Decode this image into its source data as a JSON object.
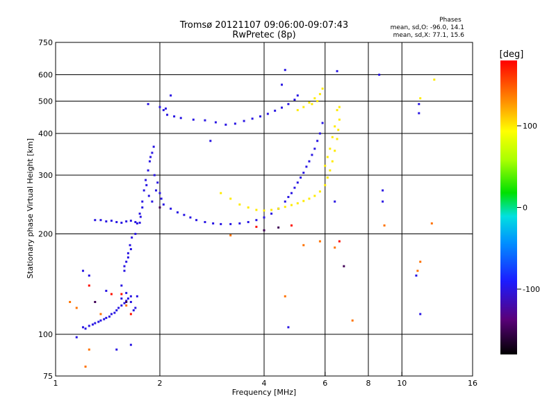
{
  "header": {
    "title_line1": "Tromsø 20121107 09:06:00-09:07:43",
    "title_line2": "RwPretec (8p)"
  },
  "stats": {
    "heading": "Phases",
    "line1": "mean, sd,O: -96.0, 14.1",
    "line2": "mean, sd,X:  77.1, 15.6"
  },
  "colorbar": {
    "label": "[deg]",
    "ticks": [
      {
        "value": 100,
        "label": "100"
      },
      {
        "value": 0,
        "label": "0"
      },
      {
        "value": -100,
        "label": "-100"
      }
    ],
    "range": [
      -180,
      180
    ]
  },
  "chart_data": {
    "type": "scatter",
    "title": "Tromsø 20121107 09:06:00-09:07:43",
    "subtitle": "RwPretec (8p)",
    "xlabel": "Frequency [MHz]",
    "ylabel": "Stationary phase Virtual Height [km]",
    "x_scale": "log",
    "y_scale": "log",
    "xlim": [
      1,
      16
    ],
    "ylim": [
      75,
      750
    ],
    "x_ticks": [
      {
        "value": 1,
        "label": "1"
      },
      {
        "value": 2,
        "label": "2"
      },
      {
        "value": 4,
        "label": "4"
      },
      {
        "value": 6,
        "label": "6"
      },
      {
        "value": 8,
        "label": "8"
      },
      {
        "value": 10,
        "label": "10"
      },
      {
        "value": 16,
        "label": "16"
      }
    ],
    "x_grid": [
      2,
      4,
      6,
      8,
      10
    ],
    "y_ticks": [
      {
        "value": 75,
        "label": "75"
      },
      {
        "value": 100,
        "label": "100"
      },
      {
        "value": 200,
        "label": "200"
      },
      {
        "value": 300,
        "label": "300"
      },
      {
        "value": 400,
        "label": "400"
      },
      {
        "value": 500,
        "label": "500"
      },
      {
        "value": 600,
        "label": "600"
      },
      {
        "value": 750,
        "label": "750"
      }
    ],
    "y_grid": [
      100,
      200,
      300,
      400,
      500,
      600
    ],
    "grid": true,
    "color_by": "phase (deg)",
    "series": [
      {
        "points": [
          [
            1.2,
            105
          ],
          [
            1.25,
            106
          ],
          [
            1.3,
            108
          ],
          [
            1.35,
            110
          ],
          [
            1.4,
            112
          ],
          [
            1.45,
            115
          ],
          [
            1.5,
            118
          ],
          [
            1.55,
            122
          ],
          [
            1.6,
            126
          ],
          [
            1.65,
            130
          ],
          [
            1.22,
            104
          ],
          [
            1.28,
            107
          ],
          [
            1.33,
            109
          ],
          [
            1.38,
            111
          ],
          [
            1.43,
            113
          ],
          [
            1.48,
            116
          ],
          [
            1.52,
            120
          ],
          [
            1.58,
            124
          ],
          [
            1.62,
            128
          ],
          [
            1.68,
            118
          ],
          [
            1.55,
            140
          ],
          [
            1.58,
            155
          ],
          [
            1.6,
            165
          ],
          [
            1.62,
            175
          ],
          [
            1.64,
            185
          ],
          [
            1.66,
            195
          ],
          [
            1.58,
            160
          ],
          [
            1.62,
            170
          ],
          [
            1.65,
            180
          ],
          [
            1.7,
            200
          ],
          [
            1.72,
            215
          ],
          [
            1.75,
            230
          ],
          [
            1.78,
            250
          ],
          [
            1.8,
            270
          ],
          [
            1.82,
            290
          ],
          [
            1.85,
            310
          ],
          [
            1.87,
            330
          ],
          [
            1.9,
            350
          ],
          [
            1.92,
            365
          ],
          [
            1.88,
            340
          ],
          [
            1.83,
            280
          ],
          [
            1.86,
            260
          ],
          [
            1.9,
            250
          ],
          [
            1.95,
            270
          ],
          [
            2.0,
            265
          ],
          [
            1.93,
            300
          ],
          [
            1.97,
            285
          ],
          [
            2.02,
            255
          ],
          [
            1.78,
            240
          ],
          [
            1.76,
            225
          ],
          [
            1.3,
            220
          ],
          [
            1.35,
            220
          ],
          [
            1.4,
            218
          ],
          [
            1.45,
            219
          ],
          [
            1.5,
            217
          ],
          [
            1.55,
            216
          ],
          [
            1.6,
            218
          ],
          [
            1.65,
            219
          ],
          [
            1.7,
            217
          ],
          [
            1.75,
            216
          ],
          [
            1.2,
            155
          ],
          [
            1.25,
            150
          ],
          [
            1.4,
            135
          ],
          [
            1.55,
            128
          ],
          [
            1.6,
            133
          ],
          [
            1.65,
            125
          ],
          [
            1.7,
            120
          ],
          [
            1.72,
            130
          ],
          [
            1.15,
            98
          ],
          [
            1.5,
            90
          ],
          [
            2.05,
            245
          ],
          [
            2.15,
            238
          ],
          [
            2.25,
            232
          ],
          [
            2.35,
            228
          ],
          [
            2.45,
            224
          ],
          [
            2.55,
            220
          ],
          [
            2.7,
            217
          ],
          [
            2.85,
            215
          ],
          [
            3.0,
            214
          ],
          [
            3.2,
            214
          ],
          [
            3.4,
            215
          ],
          [
            3.6,
            217
          ],
          [
            3.8,
            220
          ],
          [
            4.0,
            224
          ],
          [
            4.2,
            230
          ],
          [
            4.4,
            238
          ],
          [
            4.6,
            250
          ],
          [
            4.8,
            265
          ],
          [
            5.0,
            285
          ],
          [
            5.2,
            305
          ],
          [
            5.4,
            330
          ],
          [
            5.6,
            360
          ],
          [
            5.8,
            400
          ],
          [
            5.9,
            430
          ],
          [
            5.7,
            380
          ],
          [
            5.5,
            345
          ],
          [
            5.3,
            318
          ],
          [
            5.1,
            295
          ],
          [
            4.9,
            275
          ],
          [
            4.7,
            258
          ],
          [
            2.1,
            455
          ],
          [
            2.2,
            450
          ],
          [
            2.3,
            445
          ],
          [
            2.5,
            440
          ],
          [
            2.7,
            438
          ],
          [
            2.9,
            432
          ],
          [
            3.1,
            425
          ],
          [
            3.3,
            428
          ],
          [
            3.5,
            436
          ],
          [
            3.7,
            443
          ],
          [
            3.9,
            450
          ],
          [
            4.1,
            458
          ],
          [
            4.3,
            468
          ],
          [
            4.5,
            478
          ],
          [
            4.7,
            490
          ],
          [
            4.9,
            505
          ],
          [
            5.0,
            520
          ],
          [
            2.08,
            475
          ],
          [
            2.15,
            520
          ],
          [
            2.05,
            470
          ],
          [
            4.6,
            620
          ],
          [
            4.5,
            560
          ],
          [
            8.6,
            600
          ],
          [
            6.5,
            615
          ],
          [
            2.8,
            380
          ],
          [
            4.7,
            105
          ],
          [
            1.65,
            93
          ],
          [
            6.4,
            250
          ],
          [
            8.8,
            270
          ],
          [
            8.8,
            250
          ],
          [
            11.2,
            490
          ],
          [
            11.2,
            460
          ],
          [
            11.0,
            150
          ],
          [
            11.3,
            115
          ],
          [
            1.85,
            490
          ],
          [
            2.0,
            480
          ]
        ],
        "phase": -100
      },
      {
        "points": [
          [
            3.0,
            265
          ],
          [
            3.2,
            255
          ],
          [
            3.4,
            245
          ],
          [
            3.6,
            240
          ],
          [
            3.8,
            236
          ],
          [
            4.0,
            235
          ],
          [
            4.2,
            236
          ],
          [
            4.4,
            238
          ],
          [
            4.6,
            241
          ],
          [
            4.8,
            244
          ],
          [
            5.0,
            247
          ],
          [
            5.2,
            251
          ],
          [
            5.4,
            255
          ],
          [
            5.6,
            260
          ],
          [
            5.8,
            268
          ],
          [
            6.0,
            280
          ],
          [
            6.1,
            295
          ],
          [
            6.2,
            310
          ],
          [
            6.3,
            330
          ],
          [
            6.4,
            355
          ],
          [
            6.5,
            385
          ],
          [
            6.55,
            410
          ],
          [
            6.6,
            440
          ],
          [
            6.6,
            480
          ],
          [
            6.5,
            470
          ],
          [
            6.4,
            420
          ],
          [
            6.3,
            390
          ],
          [
            6.2,
            360
          ],
          [
            6.1,
            340
          ],
          [
            6.0,
            320
          ],
          [
            5.0,
            470
          ],
          [
            5.2,
            480
          ],
          [
            5.4,
            495
          ],
          [
            5.6,
            510
          ],
          [
            5.8,
            525
          ],
          [
            5.9,
            545
          ],
          [
            5.7,
            500
          ],
          [
            5.5,
            490
          ],
          [
            12.4,
            580
          ],
          [
            11.3,
            510
          ]
        ],
        "phase": 100
      },
      {
        "points": [
          [
            1.1,
            125
          ],
          [
            1.15,
            120
          ],
          [
            1.25,
            90
          ],
          [
            1.22,
            80
          ],
          [
            1.35,
            115
          ],
          [
            1.6,
            122
          ],
          [
            3.2,
            198
          ],
          [
            5.2,
            185
          ],
          [
            5.8,
            190
          ],
          [
            4.6,
            130
          ],
          [
            8.9,
            212
          ],
          [
            12.2,
            215
          ],
          [
            11.1,
            155
          ],
          [
            6.4,
            182
          ],
          [
            7.2,
            110
          ],
          [
            11.3,
            165
          ]
        ],
        "phase": 140
      },
      {
        "points": [
          [
            1.45,
            132
          ],
          [
            1.55,
            132
          ],
          [
            1.65,
            115
          ],
          [
            6.6,
            190
          ],
          [
            3.8,
            210
          ],
          [
            4.8,
            212
          ],
          [
            1.25,
            140
          ]
        ],
        "phase": 175
      },
      {
        "points": [
          [
            1.3,
            125
          ],
          [
            1.6,
            125
          ],
          [
            2.0,
            240
          ],
          [
            6.8,
            160
          ],
          [
            4.0,
            205
          ],
          [
            4.4,
            209
          ]
        ],
        "phase": -150
      }
    ]
  }
}
